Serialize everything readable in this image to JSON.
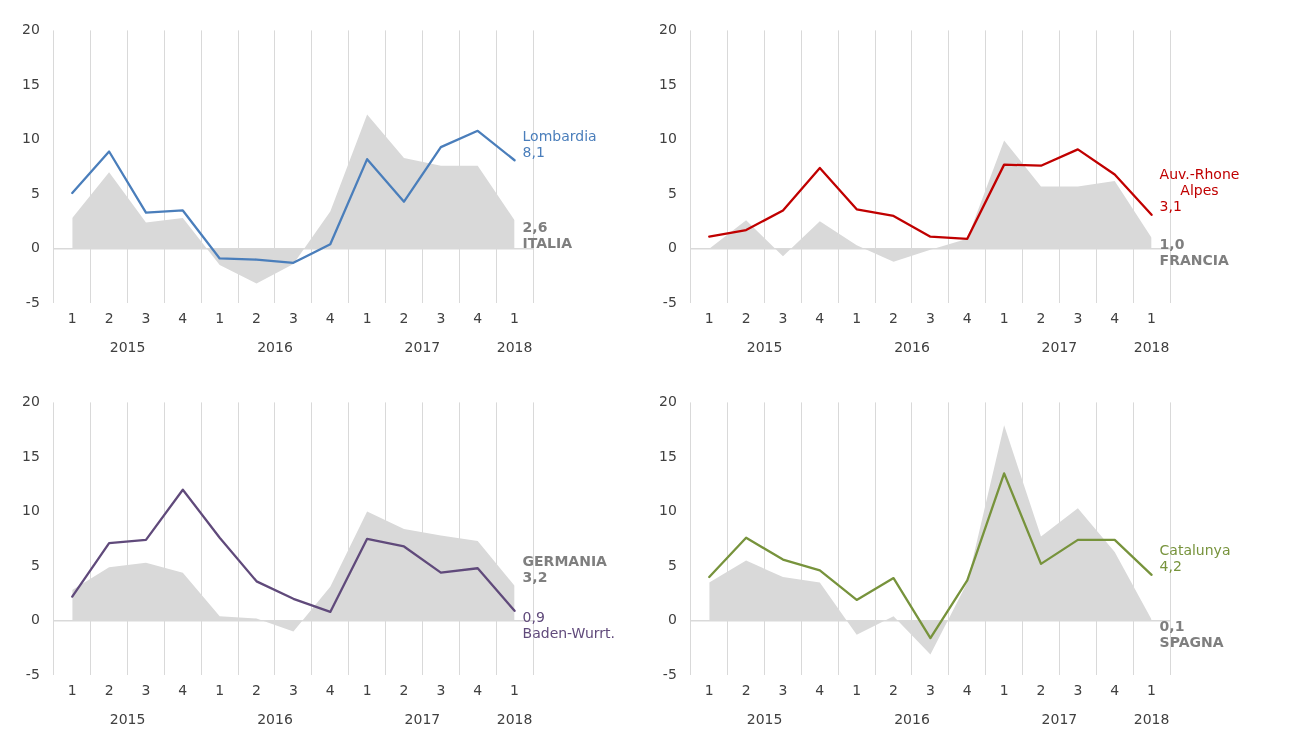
{
  "chart_data": [
    {
      "type": "line",
      "categories": [
        "1",
        "2",
        "3",
        "4",
        "1",
        "2",
        "3",
        "4",
        "1",
        "2",
        "3",
        "4",
        "1"
      ],
      "annotations": [
        "2015",
        "2016",
        "2017",
        "2018"
      ],
      "ylim": [
        -5,
        20
      ],
      "yticks": [
        -5,
        0,
        5,
        10,
        15,
        20
      ],
      "grid": "x",
      "legend": false,
      "ref_lines": [
        {
          "axis": "y",
          "value": 0,
          "color": "#d9d9d9"
        }
      ],
      "series": [
        {
          "name": "ITALIA",
          "type": "area",
          "color": "#d9d9d9",
          "values": [
            2.8,
            7.0,
            2.4,
            2.8,
            -1.5,
            -3.2,
            -1.4,
            3.4,
            12.3,
            8.3,
            7.6,
            7.6,
            2.6
          ],
          "value_labels": [
            null,
            null,
            null,
            null,
            null,
            null,
            null,
            null,
            null,
            null,
            null,
            null,
            "2,6"
          ]
        },
        {
          "name": "Lombardia",
          "type": "line",
          "color": "#4a7ebb",
          "values": [
            5.1,
            8.9,
            3.3,
            3.5,
            -0.9,
            -1.0,
            -1.3,
            0.4,
            8.2,
            4.3,
            9.3,
            10.8,
            8.1
          ],
          "value_labels": [
            null,
            null,
            null,
            null,
            null,
            null,
            null,
            null,
            null,
            null,
            null,
            null,
            "8,1"
          ]
        }
      ]
    },
    {
      "type": "line",
      "categories": [
        "1",
        "2",
        "3",
        "4",
        "1",
        "2",
        "3",
        "4",
        "1",
        "2",
        "3",
        "4",
        "1"
      ],
      "annotations": [
        "2015",
        "2016",
        "2017",
        "2018"
      ],
      "ylim": [
        -5,
        20
      ],
      "yticks": [
        -5,
        0,
        5,
        10,
        15,
        20
      ],
      "grid": "x",
      "legend": false,
      "ref_lines": [
        {
          "axis": "y",
          "value": 0,
          "color": "#d9d9d9"
        }
      ],
      "series": [
        {
          "name": "FRANCIA",
          "type": "area",
          "color": "#d9d9d9",
          "values": [
            0.0,
            2.6,
            -0.7,
            2.5,
            0.3,
            -1.2,
            -0.1,
            0.9,
            9.9,
            5.7,
            5.7,
            6.2,
            1.0
          ],
          "value_labels": [
            null,
            null,
            null,
            null,
            null,
            null,
            null,
            null,
            null,
            null,
            null,
            null,
            "1,0"
          ]
        },
        {
          "name": "Auv.-Rhone Alpes",
          "type": "line",
          "color": "#c00000",
          "values": [
            1.1,
            1.7,
            3.5,
            7.4,
            3.6,
            3.0,
            1.1,
            0.9,
            7.7,
            7.6,
            9.1,
            6.8,
            3.1
          ],
          "value_labels": [
            null,
            null,
            null,
            null,
            null,
            null,
            null,
            null,
            null,
            null,
            null,
            null,
            "3,1"
          ]
        }
      ]
    },
    {
      "type": "line",
      "categories": [
        "1",
        "2",
        "3",
        "4",
        "1",
        "2",
        "3",
        "4",
        "1",
        "2",
        "3",
        "4",
        "1"
      ],
      "annotations": [
        "2015",
        "2016",
        "2017",
        "2018"
      ],
      "ylim": [
        -5,
        20
      ],
      "yticks": [
        -5,
        0,
        5,
        10,
        15,
        20
      ],
      "grid": "x",
      "legend": false,
      "ref_lines": [
        {
          "axis": "y",
          "value": 0,
          "color": "#d9d9d9"
        }
      ],
      "series": [
        {
          "name": "GERMANIA",
          "type": "area",
          "color": "#d9d9d9",
          "values": [
            2.8,
            4.9,
            5.3,
            4.4,
            0.4,
            0.2,
            -1.0,
            3.1,
            10.0,
            8.4,
            7.8,
            7.3,
            3.2
          ],
          "value_labels": [
            null,
            null,
            null,
            null,
            null,
            null,
            null,
            null,
            null,
            null,
            null,
            null,
            "3,2"
          ]
        },
        {
          "name": "Baden-Wurrt.",
          "type": "line",
          "color": "#604a7b",
          "values": [
            2.2,
            7.1,
            7.4,
            12.0,
            7.6,
            3.6,
            2.0,
            0.8,
            7.5,
            6.8,
            4.4,
            4.8,
            0.9
          ],
          "value_labels": [
            null,
            null,
            null,
            null,
            null,
            null,
            null,
            null,
            null,
            null,
            null,
            null,
            "0,9"
          ]
        }
      ]
    },
    {
      "type": "line",
      "categories": [
        "1",
        "2",
        "3",
        "4",
        "1",
        "2",
        "3",
        "4",
        "1",
        "2",
        "3",
        "4",
        "1"
      ],
      "annotations": [
        "2015",
        "2016",
        "2017",
        "2018"
      ],
      "ylim": [
        -5,
        20
      ],
      "yticks": [
        -5,
        0,
        5,
        10,
        15,
        20
      ],
      "grid": "x",
      "legend": false,
      "ref_lines": [
        {
          "axis": "y",
          "value": 0,
          "color": "#d9d9d9"
        }
      ],
      "series": [
        {
          "name": "SPAGNA",
          "type": "area",
          "color": "#d9d9d9",
          "values": [
            3.5,
            5.5,
            4.0,
            3.5,
            -1.3,
            0.4,
            -3.1,
            3.5,
            17.9,
            7.7,
            10.3,
            6.3,
            0.1
          ],
          "value_labels": [
            null,
            null,
            null,
            null,
            null,
            null,
            null,
            null,
            null,
            null,
            null,
            null,
            "0,1"
          ]
        },
        {
          "name": "Catalunya",
          "type": "line",
          "color": "#77933c",
          "values": [
            4.0,
            7.6,
            5.6,
            4.6,
            1.9,
            3.9,
            -1.6,
            3.7,
            13.5,
            5.2,
            7.4,
            7.4,
            4.2
          ],
          "value_labels": [
            null,
            null,
            null,
            null,
            null,
            null,
            null,
            null,
            null,
            null,
            null,
            null,
            "4,2"
          ]
        }
      ]
    }
  ]
}
